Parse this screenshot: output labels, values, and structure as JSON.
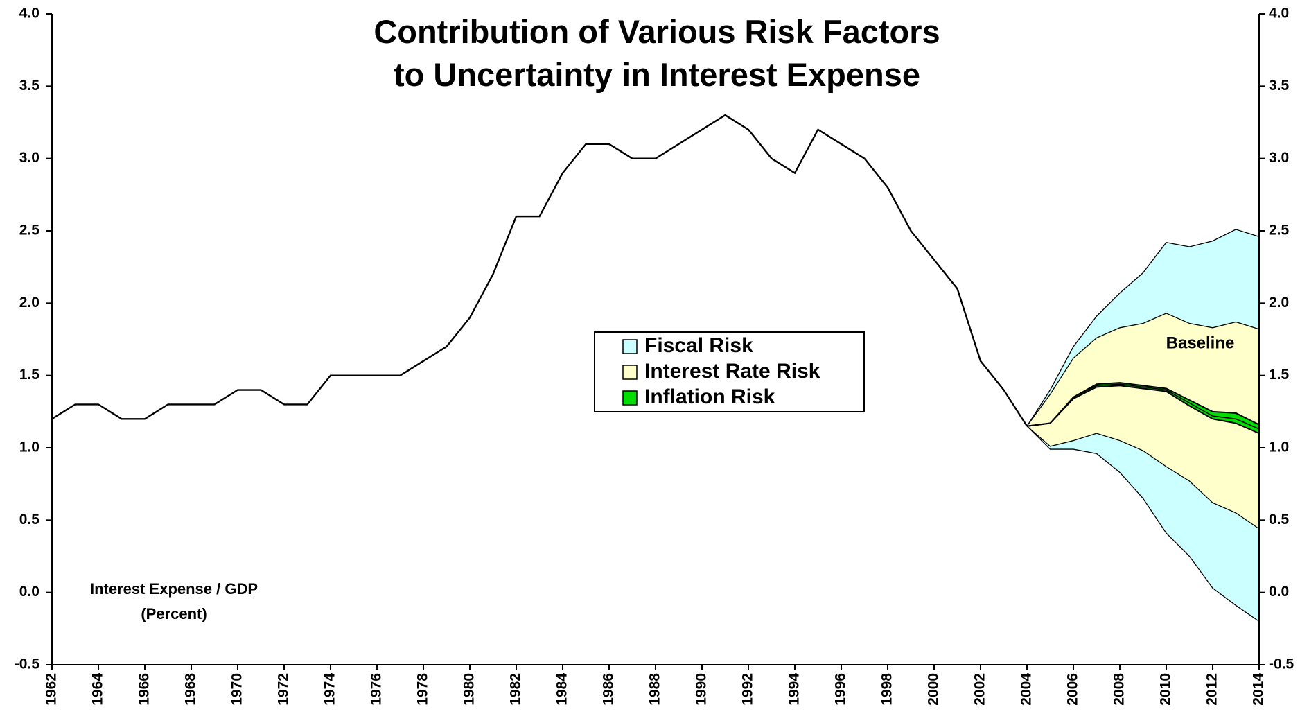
{
  "chart_data": {
    "type": "line",
    "title": [
      "Contribution of Various Risk Factors",
      "to Uncertainty in Interest Expense"
    ],
    "annotation": [
      "Interest Expense / GDP",
      "(Percent)"
    ],
    "x": [
      1962,
      1963,
      1964,
      1965,
      1966,
      1967,
      1968,
      1969,
      1970,
      1971,
      1972,
      1973,
      1974,
      1975,
      1976,
      1977,
      1978,
      1979,
      1980,
      1981,
      1982,
      1983,
      1984,
      1985,
      1986,
      1987,
      1988,
      1989,
      1990,
      1991,
      1992,
      1993,
      1994,
      1995,
      1996,
      1997,
      1998,
      1999,
      2000,
      2001,
      2002,
      2003,
      2004
    ],
    "values": [
      1.2,
      1.3,
      1.3,
      1.2,
      1.2,
      1.3,
      1.3,
      1.3,
      1.4,
      1.4,
      1.3,
      1.3,
      1.5,
      1.5,
      1.5,
      1.5,
      1.6,
      1.7,
      1.9,
      2.2,
      2.6,
      2.6,
      2.9,
      3.1,
      3.1,
      3.0,
      3.0,
      3.1,
      3.2,
      3.3,
      3.2,
      3.0,
      2.9,
      3.2,
      3.1,
      3.0,
      2.8,
      2.5,
      2.3,
      2.1,
      1.6,
      1.4,
      1.15
    ],
    "color": "#000000",
    "projection_x": [
      2004,
      2005,
      2006,
      2007,
      2008,
      2009,
      2010,
      2011,
      2012,
      2013,
      2014
    ],
    "bands": [
      {
        "name": "Fiscal Risk",
        "color": "#ccffff",
        "upper": [
          1.15,
          1.4,
          1.7,
          1.91,
          2.07,
          2.21,
          2.42,
          2.39,
          2.43,
          2.51,
          2.46
        ],
        "lower": [
          1.15,
          0.99,
          0.99,
          0.96,
          0.83,
          0.65,
          0.41,
          0.25,
          0.03,
          -0.09,
          -0.2
        ]
      },
      {
        "name": "Interest Rate Risk",
        "color": "#ffffcc",
        "upper": [
          1.15,
          1.37,
          1.62,
          1.76,
          1.83,
          1.86,
          1.93,
          1.86,
          1.83,
          1.87,
          1.82
        ],
        "lower": [
          1.15,
          1.01,
          1.05,
          1.1,
          1.05,
          0.98,
          0.87,
          0.77,
          0.62,
          0.55,
          0.44
        ]
      },
      {
        "name": "Inflation Risk",
        "color": "#00dd00",
        "upper": [
          1.15,
          1.17,
          1.35,
          1.44,
          1.45,
          1.43,
          1.41,
          1.33,
          1.25,
          1.24,
          1.16
        ],
        "lower": [
          1.15,
          1.17,
          1.34,
          1.42,
          1.43,
          1.41,
          1.39,
          1.29,
          1.2,
          1.17,
          1.1
        ]
      }
    ],
    "baseline": {
      "name": "Baseline",
      "values": [
        1.15,
        1.17,
        1.35,
        1.43,
        1.44,
        1.42,
        1.4,
        1.31,
        1.22,
        1.2,
        1.13
      ]
    },
    "xlim": [
      1962,
      2014
    ],
    "xticks": [
      1962,
      1964,
      1966,
      1968,
      1970,
      1972,
      1974,
      1976,
      1978,
      1980,
      1982,
      1984,
      1986,
      1988,
      1990,
      1992,
      1994,
      1996,
      1998,
      2000,
      2002,
      2004,
      2006,
      2008,
      2010,
      2012,
      2014
    ],
    "ylim": [
      -0.5,
      4.0
    ],
    "yticks": [
      -0.5,
      {
        "value": 0,
        "label": "0.0"
      },
      0.5,
      {
        "value": 1,
        "label": "1.0"
      },
      1.5,
      {
        "value": 2,
        "label": "2.0"
      },
      2.5,
      {
        "value": 3,
        "label": "3.0"
      },
      3.5,
      {
        "value": 4,
        "label": "4.0"
      }
    ],
    "y2lim": [
      -0.5,
      4.0
    ],
    "y2ticks": [
      -0.5,
      {
        "value": 0,
        "label": "0.0"
      },
      0.5,
      {
        "value": 1,
        "label": "1.0"
      },
      1.5,
      {
        "value": 2,
        "label": "2.0"
      },
      2.5,
      {
        "value": 3,
        "label": "3.0"
      },
      3.5,
      {
        "value": 4,
        "label": "4.0"
      }
    ]
  }
}
